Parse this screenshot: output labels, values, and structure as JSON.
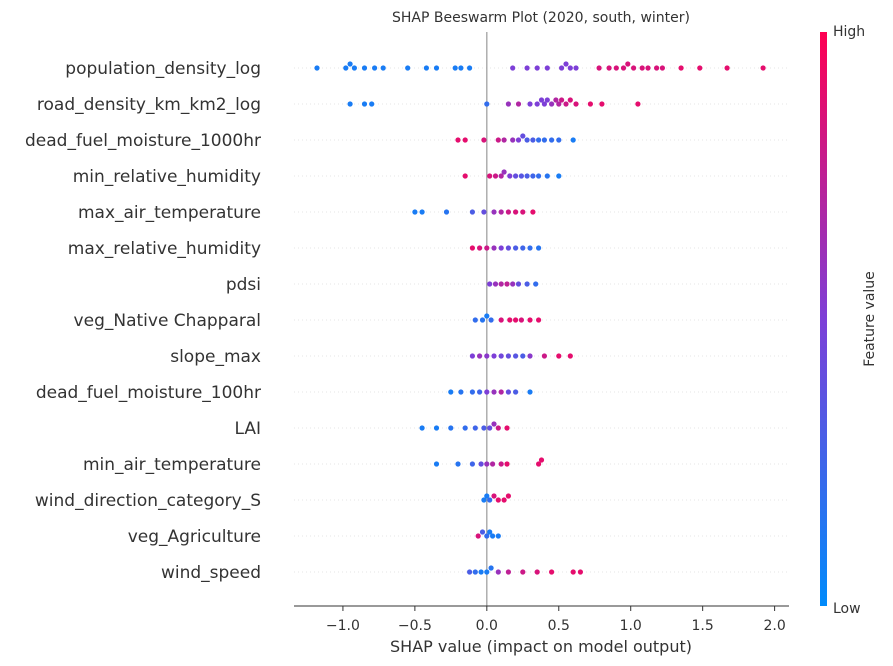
{
  "chart_data": {
    "type": "scatter",
    "subtype": "shap-beeswarm",
    "title": "SHAP Beeswarm Plot (2020, south, winter)",
    "xlabel": "SHAP value (impact on model output)",
    "ylabel": "",
    "xlim": [
      -1.34,
      2.1
    ],
    "xticks": [
      -1.0,
      -0.5,
      0.0,
      0.5,
      1.0,
      1.5,
      2.0
    ],
    "xtick_labels": [
      "−1.0",
      "−0.5",
      "0.0",
      "0.5",
      "1.0",
      "1.5",
      "2.0"
    ],
    "grid": false,
    "colorbar": {
      "label": "Feature value",
      "high_label": "High",
      "low_label": "Low",
      "low_color": "#008bfb",
      "high_color": "#ff0052"
    },
    "features": [
      {
        "name": "population_density_log",
        "points": [
          [
            -1.18,
            0.1
          ],
          [
            -0.98,
            0.1
          ],
          [
            -0.95,
            0.1
          ],
          [
            -0.92,
            0.1
          ],
          [
            -0.85,
            0.1
          ],
          [
            -0.78,
            0.1
          ],
          [
            -0.72,
            0.1
          ],
          [
            -0.55,
            0.1
          ],
          [
            -0.42,
            0.1
          ],
          [
            -0.35,
            0.1
          ],
          [
            -0.22,
            0.1
          ],
          [
            -0.18,
            0.1
          ],
          [
            -0.12,
            0.1
          ],
          [
            0.18,
            0.5
          ],
          [
            0.28,
            0.5
          ],
          [
            0.35,
            0.5
          ],
          [
            0.42,
            0.5
          ],
          [
            0.52,
            0.5
          ],
          [
            0.55,
            0.5
          ],
          [
            0.58,
            0.5
          ],
          [
            0.62,
            0.5
          ],
          [
            0.78,
            0.85
          ],
          [
            0.85,
            0.85
          ],
          [
            0.9,
            0.85
          ],
          [
            0.95,
            0.85
          ],
          [
            0.98,
            0.85
          ],
          [
            1.02,
            0.85
          ],
          [
            1.08,
            0.85
          ],
          [
            1.12,
            0.85
          ],
          [
            1.18,
            0.85
          ],
          [
            1.22,
            0.85
          ],
          [
            1.35,
            0.9
          ],
          [
            1.48,
            0.9
          ],
          [
            1.67,
            0.9
          ],
          [
            1.92,
            0.9
          ]
        ]
      },
      {
        "name": "road_density_km_km2_log",
        "points": [
          [
            -0.95,
            0.1
          ],
          [
            -0.85,
            0.1
          ],
          [
            -0.8,
            0.1
          ],
          [
            0.0,
            0.2
          ],
          [
            0.15,
            0.6
          ],
          [
            0.22,
            0.7
          ],
          [
            0.3,
            0.5
          ],
          [
            0.35,
            0.5
          ],
          [
            0.38,
            0.5
          ],
          [
            0.4,
            0.5
          ],
          [
            0.42,
            0.5
          ],
          [
            0.45,
            0.6
          ],
          [
            0.48,
            0.7
          ],
          [
            0.5,
            0.7
          ],
          [
            0.52,
            0.8
          ],
          [
            0.55,
            0.8
          ],
          [
            0.58,
            0.85
          ],
          [
            0.62,
            0.85
          ],
          [
            0.72,
            0.9
          ],
          [
            0.8,
            0.9
          ],
          [
            1.05,
            0.9
          ]
        ]
      },
      {
        "name": "dead_fuel_moisture_1000hr",
        "points": [
          [
            -0.2,
            0.9
          ],
          [
            -0.15,
            0.9
          ],
          [
            -0.02,
            0.85
          ],
          [
            0.08,
            0.8
          ],
          [
            0.12,
            0.7
          ],
          [
            0.18,
            0.6
          ],
          [
            0.22,
            0.5
          ],
          [
            0.25,
            0.4
          ],
          [
            0.28,
            0.3
          ],
          [
            0.32,
            0.3
          ],
          [
            0.36,
            0.2
          ],
          [
            0.4,
            0.2
          ],
          [
            0.45,
            0.2
          ],
          [
            0.5,
            0.2
          ],
          [
            0.6,
            0.1
          ]
        ]
      },
      {
        "name": "min_relative_humidity",
        "points": [
          [
            -0.15,
            0.9
          ],
          [
            0.02,
            0.85
          ],
          [
            0.06,
            0.8
          ],
          [
            0.1,
            0.7
          ],
          [
            0.12,
            0.6
          ],
          [
            0.16,
            0.5
          ],
          [
            0.2,
            0.4
          ],
          [
            0.24,
            0.35
          ],
          [
            0.28,
            0.3
          ],
          [
            0.32,
            0.25
          ],
          [
            0.36,
            0.2
          ],
          [
            0.42,
            0.15
          ],
          [
            0.5,
            0.1
          ]
        ]
      },
      {
        "name": "max_air_temperature",
        "points": [
          [
            -0.5,
            0.1
          ],
          [
            -0.45,
            0.1
          ],
          [
            -0.28,
            0.15
          ],
          [
            -0.1,
            0.3
          ],
          [
            -0.02,
            0.4
          ],
          [
            0.05,
            0.6
          ],
          [
            0.1,
            0.7
          ],
          [
            0.15,
            0.8
          ],
          [
            0.2,
            0.85
          ],
          [
            0.25,
            0.85
          ],
          [
            0.32,
            0.9
          ]
        ]
      },
      {
        "name": "max_relative_humidity",
        "points": [
          [
            -0.1,
            0.9
          ],
          [
            -0.05,
            0.85
          ],
          [
            0.0,
            0.8
          ],
          [
            0.05,
            0.6
          ],
          [
            0.1,
            0.5
          ],
          [
            0.15,
            0.4
          ],
          [
            0.2,
            0.3
          ],
          [
            0.25,
            0.25
          ],
          [
            0.3,
            0.2
          ],
          [
            0.36,
            0.15
          ]
        ]
      },
      {
        "name": "pdsi",
        "points": [
          [
            0.02,
            0.5
          ],
          [
            0.06,
            0.6
          ],
          [
            0.1,
            0.7
          ],
          [
            0.14,
            0.75
          ],
          [
            0.18,
            0.6
          ],
          [
            0.22,
            0.4
          ],
          [
            0.28,
            0.3
          ],
          [
            0.34,
            0.2
          ]
        ]
      },
      {
        "name": "veg_Native Chapparal ",
        "points": [
          [
            -0.08,
            0.2
          ],
          [
            -0.03,
            0.15
          ],
          [
            0.0,
            0.1
          ],
          [
            0.03,
            0.2
          ],
          [
            0.1,
            0.85
          ],
          [
            0.16,
            0.9
          ],
          [
            0.2,
            0.9
          ],
          [
            0.24,
            0.85
          ],
          [
            0.3,
            0.9
          ],
          [
            0.36,
            0.9
          ]
        ]
      },
      {
        "name": "slope_max",
        "points": [
          [
            -0.1,
            0.5
          ],
          [
            -0.05,
            0.6
          ],
          [
            0.0,
            0.55
          ],
          [
            0.05,
            0.5
          ],
          [
            0.1,
            0.45
          ],
          [
            0.15,
            0.4
          ],
          [
            0.2,
            0.35
          ],
          [
            0.25,
            0.3
          ],
          [
            0.3,
            0.55
          ],
          [
            0.4,
            0.8
          ],
          [
            0.5,
            0.9
          ],
          [
            0.58,
            0.9
          ]
        ]
      },
      {
        "name": "dead_fuel_moisture_100hr",
        "points": [
          [
            -0.25,
            0.1
          ],
          [
            -0.18,
            0.15
          ],
          [
            -0.1,
            0.2
          ],
          [
            -0.05,
            0.25
          ],
          [
            0.0,
            0.5
          ],
          [
            0.05,
            0.6
          ],
          [
            0.1,
            0.7
          ],
          [
            0.15,
            0.4
          ],
          [
            0.2,
            0.3
          ],
          [
            0.3,
            0.1
          ]
        ]
      },
      {
        "name": "LAI",
        "points": [
          [
            -0.45,
            0.1
          ],
          [
            -0.35,
            0.1
          ],
          [
            -0.25,
            0.15
          ],
          [
            -0.15,
            0.2
          ],
          [
            -0.08,
            0.25
          ],
          [
            -0.02,
            0.3
          ],
          [
            0.02,
            0.4
          ],
          [
            0.05,
            0.6
          ],
          [
            0.08,
            0.8
          ],
          [
            0.14,
            0.9
          ]
        ]
      },
      {
        "name": "min_air_temperature",
        "points": [
          [
            -0.35,
            0.1
          ],
          [
            -0.2,
            0.15
          ],
          [
            -0.1,
            0.25
          ],
          [
            -0.04,
            0.4
          ],
          [
            0.0,
            0.6
          ],
          [
            0.04,
            0.7
          ],
          [
            0.1,
            0.8
          ],
          [
            0.14,
            0.9
          ],
          [
            0.36,
            0.9
          ],
          [
            0.38,
            0.9
          ]
        ]
      },
      {
        "name": "wind_direction_category_S",
        "points": [
          [
            -0.02,
            0.1
          ],
          [
            0.0,
            0.1
          ],
          [
            0.02,
            0.2
          ],
          [
            0.05,
            0.85
          ],
          [
            0.08,
            0.9
          ],
          [
            0.12,
            0.9
          ],
          [
            0.15,
            0.9
          ]
        ]
      },
      {
        "name": "veg_Agriculture ",
        "points": [
          [
            -0.06,
            0.85
          ],
          [
            -0.03,
            0.3
          ],
          [
            0.0,
            0.2
          ],
          [
            0.02,
            0.1
          ],
          [
            0.04,
            0.1
          ],
          [
            0.08,
            0.1
          ]
        ]
      },
      {
        "name": "wind_speed",
        "points": [
          [
            -0.12,
            0.3
          ],
          [
            -0.08,
            0.2
          ],
          [
            -0.04,
            0.1
          ],
          [
            0.0,
            0.1
          ],
          [
            0.03,
            0.15
          ],
          [
            0.08,
            0.6
          ],
          [
            0.15,
            0.75
          ],
          [
            0.25,
            0.8
          ],
          [
            0.35,
            0.85
          ],
          [
            0.45,
            0.9
          ],
          [
            0.6,
            0.9
          ],
          [
            0.65,
            0.9
          ]
        ]
      }
    ]
  }
}
